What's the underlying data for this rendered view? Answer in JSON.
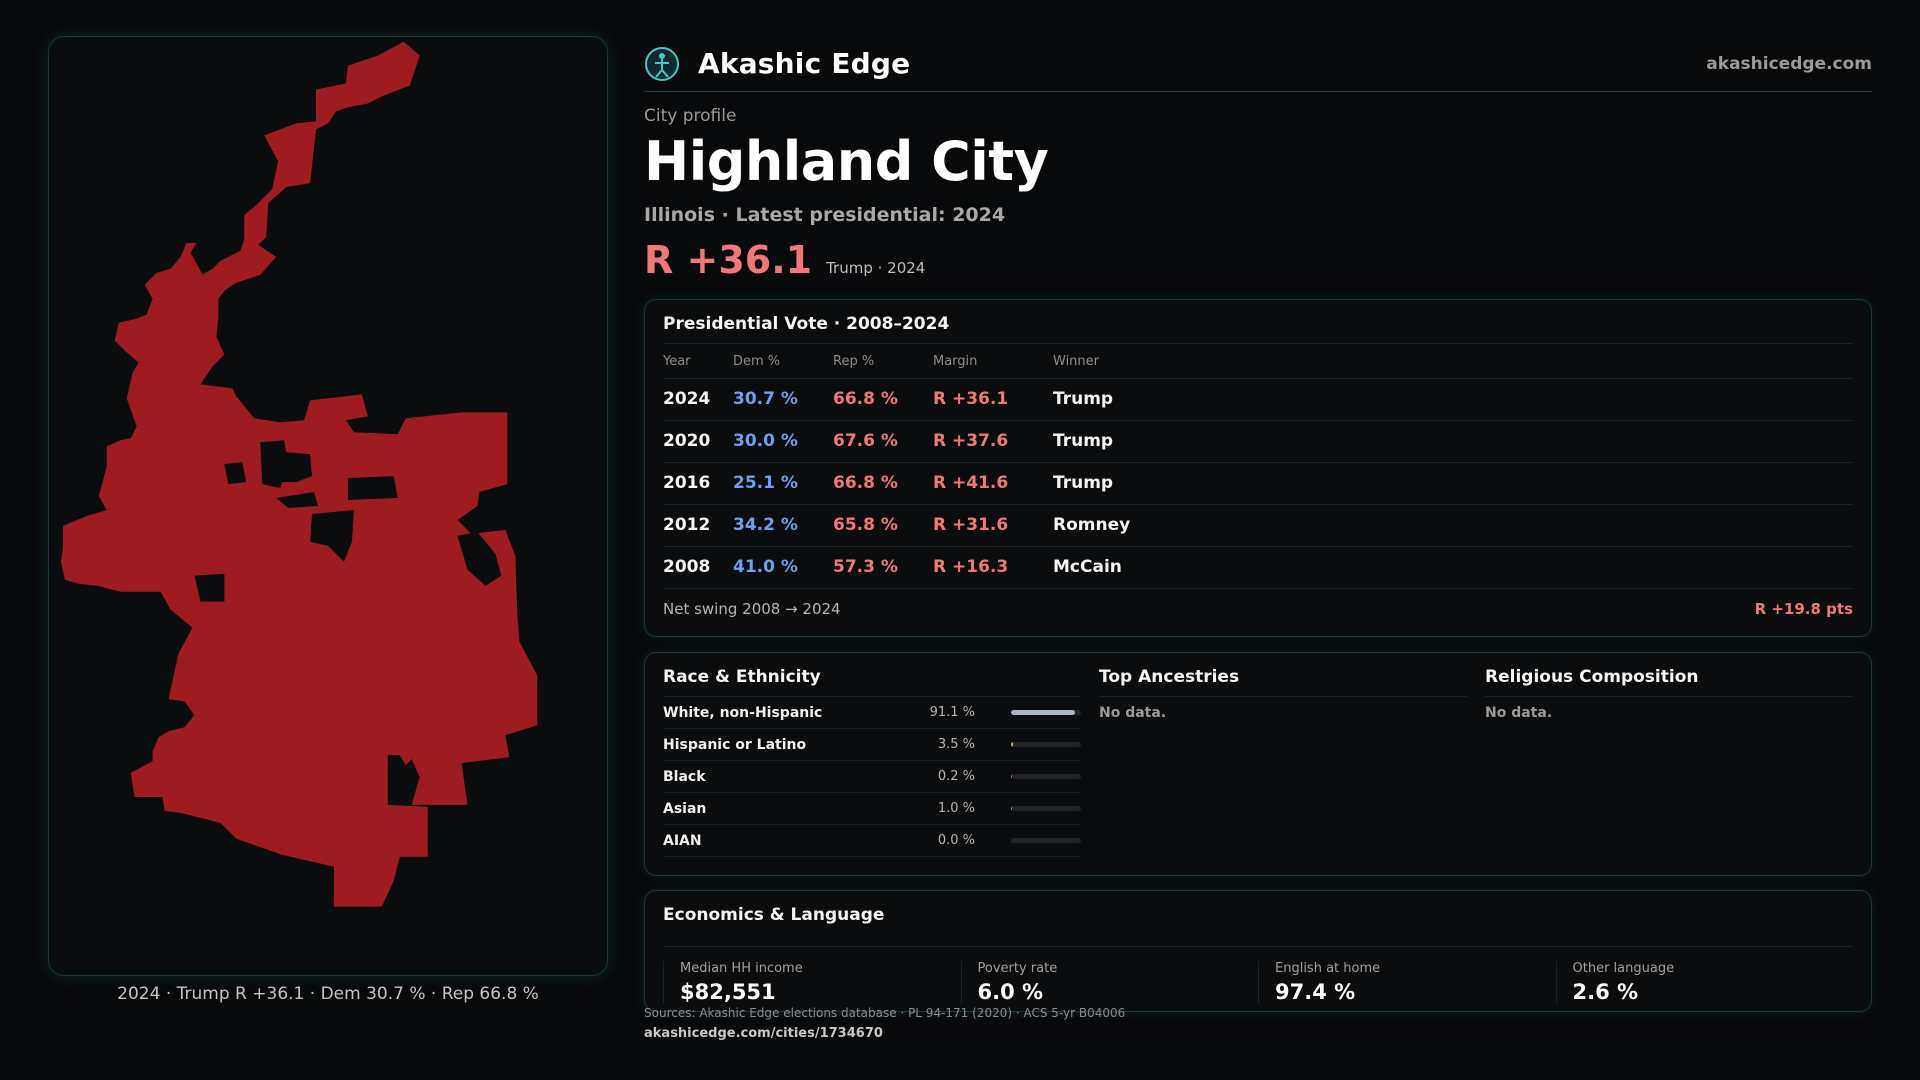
{
  "brand": {
    "name": "Akashic Edge",
    "site": "akashicedge.com",
    "logo_icon": "globe-figure-icon"
  },
  "profile": {
    "eyebrow": "City profile",
    "city": "Highland City",
    "subline": "Illinois · Latest presidential: 2024",
    "margin": "R +36.1",
    "margin_note": "Trump · 2024"
  },
  "map": {
    "caption": "2024 · Trump R +36.1 · Dem 30.7 % · Rep 66.8 %",
    "fill_color": "#9e1c1f"
  },
  "vote": {
    "title": "Presidential Vote · 2008–2024",
    "headers": {
      "year": "Year",
      "dem": "Dem %",
      "rep": "Rep %",
      "margin": "Margin",
      "winner": "Winner"
    },
    "rows": [
      {
        "year": "2024",
        "dem": "30.7 %",
        "rep": "66.8 %",
        "margin": "R +36.1",
        "winner": "Trump"
      },
      {
        "year": "2020",
        "dem": "30.0 %",
        "rep": "67.6 %",
        "margin": "R +37.6",
        "winner": "Trump"
      },
      {
        "year": "2016",
        "dem": "25.1 %",
        "rep": "66.8 %",
        "margin": "R +41.6",
        "winner": "Trump"
      },
      {
        "year": "2012",
        "dem": "34.2 %",
        "rep": "65.8 %",
        "margin": "R +31.6",
        "winner": "Romney"
      },
      {
        "year": "2008",
        "dem": "41.0 %",
        "rep": "57.3 %",
        "margin": "R +16.3",
        "winner": "McCain"
      }
    ],
    "swing_label": "Net swing 2008 → 2024",
    "swing_value": "R +19.8 pts"
  },
  "race": {
    "title": "Race & Ethnicity",
    "rows": [
      {
        "name": "White, non-Hispanic",
        "value": "91.1 %",
        "fraction": 0.911,
        "color": "#aab4c4"
      },
      {
        "name": "Hispanic or Latino",
        "value": "3.5 %",
        "fraction": 0.035,
        "color": "#e0a83a"
      },
      {
        "name": "Black",
        "value": "0.2 %",
        "fraction": 0.002,
        "color": "#8a6fd8"
      },
      {
        "name": "Asian",
        "value": "1.0 %",
        "fraction": 0.01,
        "color": "#4fb6a0"
      },
      {
        "name": "AIAN",
        "value": "0.0 %",
        "fraction": 0.0,
        "color": "#c46a4a"
      }
    ]
  },
  "ancestries": {
    "title": "Top Ancestries",
    "empty": "No data."
  },
  "religion": {
    "title": "Religious Composition",
    "empty": "No data."
  },
  "economics": {
    "title": "Economics & Language",
    "items": [
      {
        "label": "Median HH income",
        "value": "$82,551"
      },
      {
        "label": "Poverty rate",
        "value": "6.0 %"
      },
      {
        "label": "English at home",
        "value": "97.4 %"
      },
      {
        "label": "Other language",
        "value": "2.6 %"
      }
    ]
  },
  "footer": {
    "sources": "Sources: Akashic Edge elections database · PL 94-171 (2020) · ACS 5-yr B04006",
    "url": "akashicedge.com/cities/1734670"
  }
}
